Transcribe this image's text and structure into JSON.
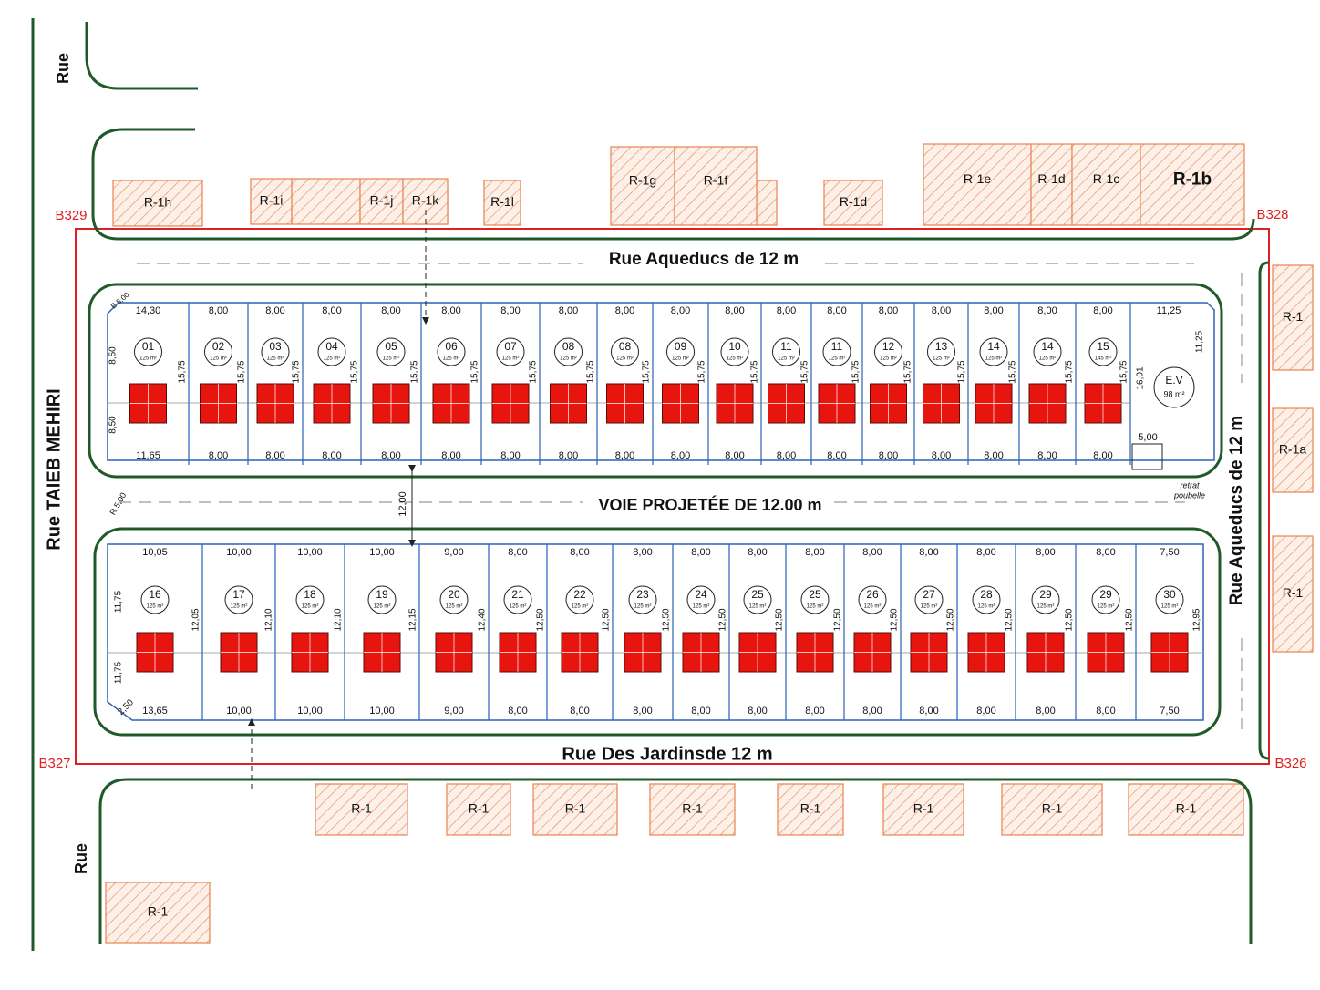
{
  "streets": {
    "north_left": "Rue",
    "west": "Rue TAIEB MEHIRI",
    "north": "Rue Aqueducs de 12 m",
    "middle": "VOIE PROJETÉE DE 12.00 m",
    "east": "Rue Aqueducs de 12 m",
    "south": "Rue Des Jardinsde 12 m",
    "south_left": "Rue"
  },
  "markers": [
    "B329",
    "B328",
    "B327",
    "B326"
  ],
  "buildings": [
    "R-1h",
    "R-1i",
    "R-1j",
    "R-1k",
    "R-1l",
    "R-1g",
    "R-1f",
    "R-1d",
    "R-1e",
    "R-1d",
    "R-1c",
    "R-1b",
    "R-1",
    "R-1a",
    "R-1",
    "R-1",
    "R-1",
    "R-1",
    "R-1",
    "R-1",
    "R-1",
    "R-1",
    "R-1",
    "R-1"
  ],
  "top_row": {
    "left_dims": [
      "8,50",
      "8,50"
    ],
    "lots": [
      {
        "number": "01",
        "area": "125 m²",
        "top": "14,30",
        "bottom": "11,65",
        "side": "15,75"
      },
      {
        "number": "02",
        "area": "125 m²",
        "top": "8,00",
        "bottom": "8,00",
        "side": "15,75"
      },
      {
        "number": "03",
        "area": "125 m²",
        "top": "8,00",
        "bottom": "8,00",
        "side": "15,75"
      },
      {
        "number": "04",
        "area": "125 m²",
        "top": "8,00",
        "bottom": "8,00",
        "side": "15,75"
      },
      {
        "number": "05",
        "area": "125 m²",
        "top": "8,00",
        "bottom": "8,00",
        "side": "15,75"
      },
      {
        "number": "06",
        "area": "125 m²",
        "top": "8,00",
        "bottom": "8,00",
        "side": "15,75"
      },
      {
        "number": "07",
        "area": "125 m²",
        "top": "8,00",
        "bottom": "8,00",
        "side": "15,75"
      },
      {
        "number": "08",
        "area": "125 m²",
        "top": "8,00",
        "bottom": "8,00",
        "side": "15,75"
      },
      {
        "number": "08",
        "area": "125 m²",
        "top": "8,00",
        "bottom": "8,00",
        "side": "15,75"
      },
      {
        "number": "09",
        "area": "125 m²",
        "top": "8,00",
        "bottom": "8,00",
        "side": "15,75"
      },
      {
        "number": "10",
        "area": "125 m²",
        "top": "8,00",
        "bottom": "8,00",
        "side": "15,75"
      },
      {
        "number": "11",
        "area": "125 m²",
        "top": "8,00",
        "bottom": "8,00",
        "side": "15,75"
      },
      {
        "number": "11",
        "area": "125 m²",
        "top": "8,00",
        "bottom": "8,00",
        "side": "15,75"
      },
      {
        "number": "12",
        "area": "125 m²",
        "top": "8,00",
        "bottom": "8,00",
        "side": "15,75"
      },
      {
        "number": "13",
        "area": "125 m²",
        "top": "8,00",
        "bottom": "8,00",
        "side": "15,75"
      },
      {
        "number": "14",
        "area": "125 m²",
        "top": "8,00",
        "bottom": "8,00",
        "side": "15,75"
      },
      {
        "number": "14",
        "area": "125 m²",
        "top": "8,00",
        "bottom": "8,00",
        "side": "15,75"
      },
      {
        "number": "15",
        "area": "145 m²",
        "top": "8,00",
        "bottom": "8,00",
        "side": "15,75"
      }
    ]
  },
  "green_space": {
    "label": "E.V",
    "area": "98 m²",
    "top": "11,25",
    "right": "11,25",
    "left": "16,01",
    "bottom": "5,00"
  },
  "bottom_row": {
    "left_dims": [
      "11,75",
      "11,75",
      "2,50"
    ],
    "lots": [
      {
        "number": "16",
        "area": "125 m²",
        "top": "10,05",
        "bottom": "13,65",
        "side": "12,05"
      },
      {
        "number": "17",
        "area": "125 m²",
        "top": "10,00",
        "bottom": "10,00",
        "side": "12,10"
      },
      {
        "number": "18",
        "area": "125 m²",
        "top": "10,00",
        "bottom": "10,00",
        "side": "12,10"
      },
      {
        "number": "19",
        "area": "125 m²",
        "top": "10,00",
        "bottom": "10,00",
        "side": "12,15"
      },
      {
        "number": "20",
        "area": "125 m²",
        "top": "9,00",
        "bottom": "9,00",
        "side": "12,40"
      },
      {
        "number": "21",
        "area": "125 m²",
        "top": "8,00",
        "bottom": "8,00",
        "side": "12,50"
      },
      {
        "number": "22",
        "area": "125 m²",
        "top": "8,00",
        "bottom": "8,00",
        "side": "12,50"
      },
      {
        "number": "23",
        "area": "125 m²",
        "top": "8,00",
        "bottom": "8,00",
        "side": "12,50"
      },
      {
        "number": "24",
        "area": "125 m²",
        "top": "8,00",
        "bottom": "8,00",
        "side": "12,50"
      },
      {
        "number": "25",
        "area": "125 m²",
        "top": "8,00",
        "bottom": "8,00",
        "side": "12,50"
      },
      {
        "number": "25",
        "area": "125 m²",
        "top": "8,00",
        "bottom": "8,00",
        "side": "12,50"
      },
      {
        "number": "26",
        "area": "125 m²",
        "top": "8,00",
        "bottom": "8,00",
        "side": "12,50"
      },
      {
        "number": "27",
        "area": "125 m²",
        "top": "8,00",
        "bottom": "8,00",
        "side": "12,50"
      },
      {
        "number": "28",
        "area": "125 m²",
        "top": "8,00",
        "bottom": "8,00",
        "side": "12,50"
      },
      {
        "number": "29",
        "area": "125 m²",
        "top": "8,00",
        "bottom": "8,00",
        "side": "12,50"
      },
      {
        "number": "29",
        "area": "125 m²",
        "top": "8,00",
        "bottom": "8,00",
        "side": "12,50"
      },
      {
        "number": "30",
        "area": "125 m²",
        "top": "7,50",
        "bottom": "7,50",
        "side": "12,95"
      }
    ]
  },
  "annotations": {
    "spacing": "12,00",
    "radius": "R 5,00",
    "corner": "E 5,00",
    "bin": [
      "retrat",
      "poubelle"
    ]
  }
}
